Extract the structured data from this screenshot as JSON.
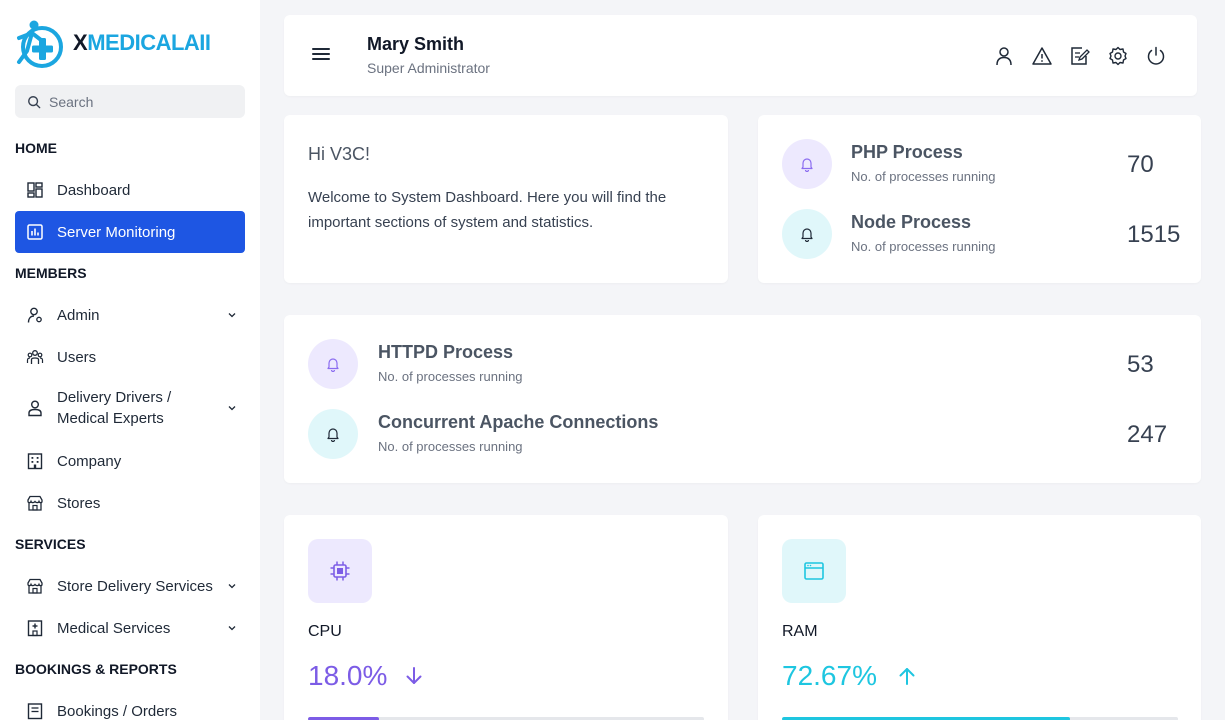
{
  "brand": {
    "x": "X",
    "rest": "MEDICALAII",
    "color_primary": "#1ba6e0"
  },
  "search": {
    "placeholder": "Search"
  },
  "sidebar": {
    "sections": [
      {
        "label": "HOME"
      },
      {
        "label": "MEMBERS"
      },
      {
        "label": "SERVICES"
      },
      {
        "label": "BOOKINGS & REPORTS"
      }
    ],
    "items": [
      {
        "label": "Dashboard",
        "icon": "dashboard-icon"
      },
      {
        "label": "Server Monitoring",
        "icon": "chart-icon",
        "active": true
      },
      {
        "label": "Admin",
        "icon": "admin-icon",
        "expandable": true
      },
      {
        "label": "Users",
        "icon": "users-icon"
      },
      {
        "label": "Delivery Drivers /",
        "label2": "Medical Experts",
        "icon": "driver-icon",
        "expandable": true
      },
      {
        "label": "Company",
        "icon": "building-icon"
      },
      {
        "label": "Stores",
        "icon": "store-icon"
      },
      {
        "label": "Store Delivery Services",
        "icon": "store-icon",
        "expandable": true
      },
      {
        "label": "Medical Services",
        "icon": "hospital-icon",
        "expandable": true
      },
      {
        "label": "Bookings / Orders",
        "icon": "list-icon"
      }
    ],
    "active_color": "#1e56e3"
  },
  "header": {
    "name": "Mary Smith",
    "role": "Super Administrator",
    "icons": [
      "profile-icon",
      "alert-icon",
      "edit-icon",
      "settings-icon",
      "power-icon"
    ]
  },
  "welcome": {
    "greeting": "Hi V3C!",
    "message": "Welcome to System Dashboard. Here you will find the important sections of system and statistics."
  },
  "processes": [
    {
      "title": "PHP Process",
      "sub": "No. of processes running",
      "value": "70",
      "badge_color": "#ede9fe",
      "icon_color": "#8b6cf0"
    },
    {
      "title": "Node Process",
      "sub": "No. of processes running",
      "value": "1515",
      "badge_color": "#e0f7fa",
      "icon_color": "#1f2937"
    },
    {
      "title": "HTTPD Process",
      "sub": "No. of processes running",
      "value": "53",
      "badge_color": "#ede9fe",
      "icon_color": "#8b6cf0"
    },
    {
      "title": "Concurrent Apache Connections",
      "sub": "No. of processes running",
      "value": "247",
      "badge_color": "#e0f7fa",
      "icon_color": "#1f2937"
    }
  ],
  "metrics": [
    {
      "label": "CPU",
      "value": "18.0%",
      "trend": "down",
      "percent": 18.0,
      "color": "#7c5ce6",
      "bg": "#ede9fe",
      "icon": "cpu-icon"
    },
    {
      "label": "RAM",
      "value": "72.67%",
      "trend": "up",
      "percent": 72.67,
      "color": "#1ec6e0",
      "bg": "#e0f7fa",
      "icon": "ram-icon"
    }
  ]
}
